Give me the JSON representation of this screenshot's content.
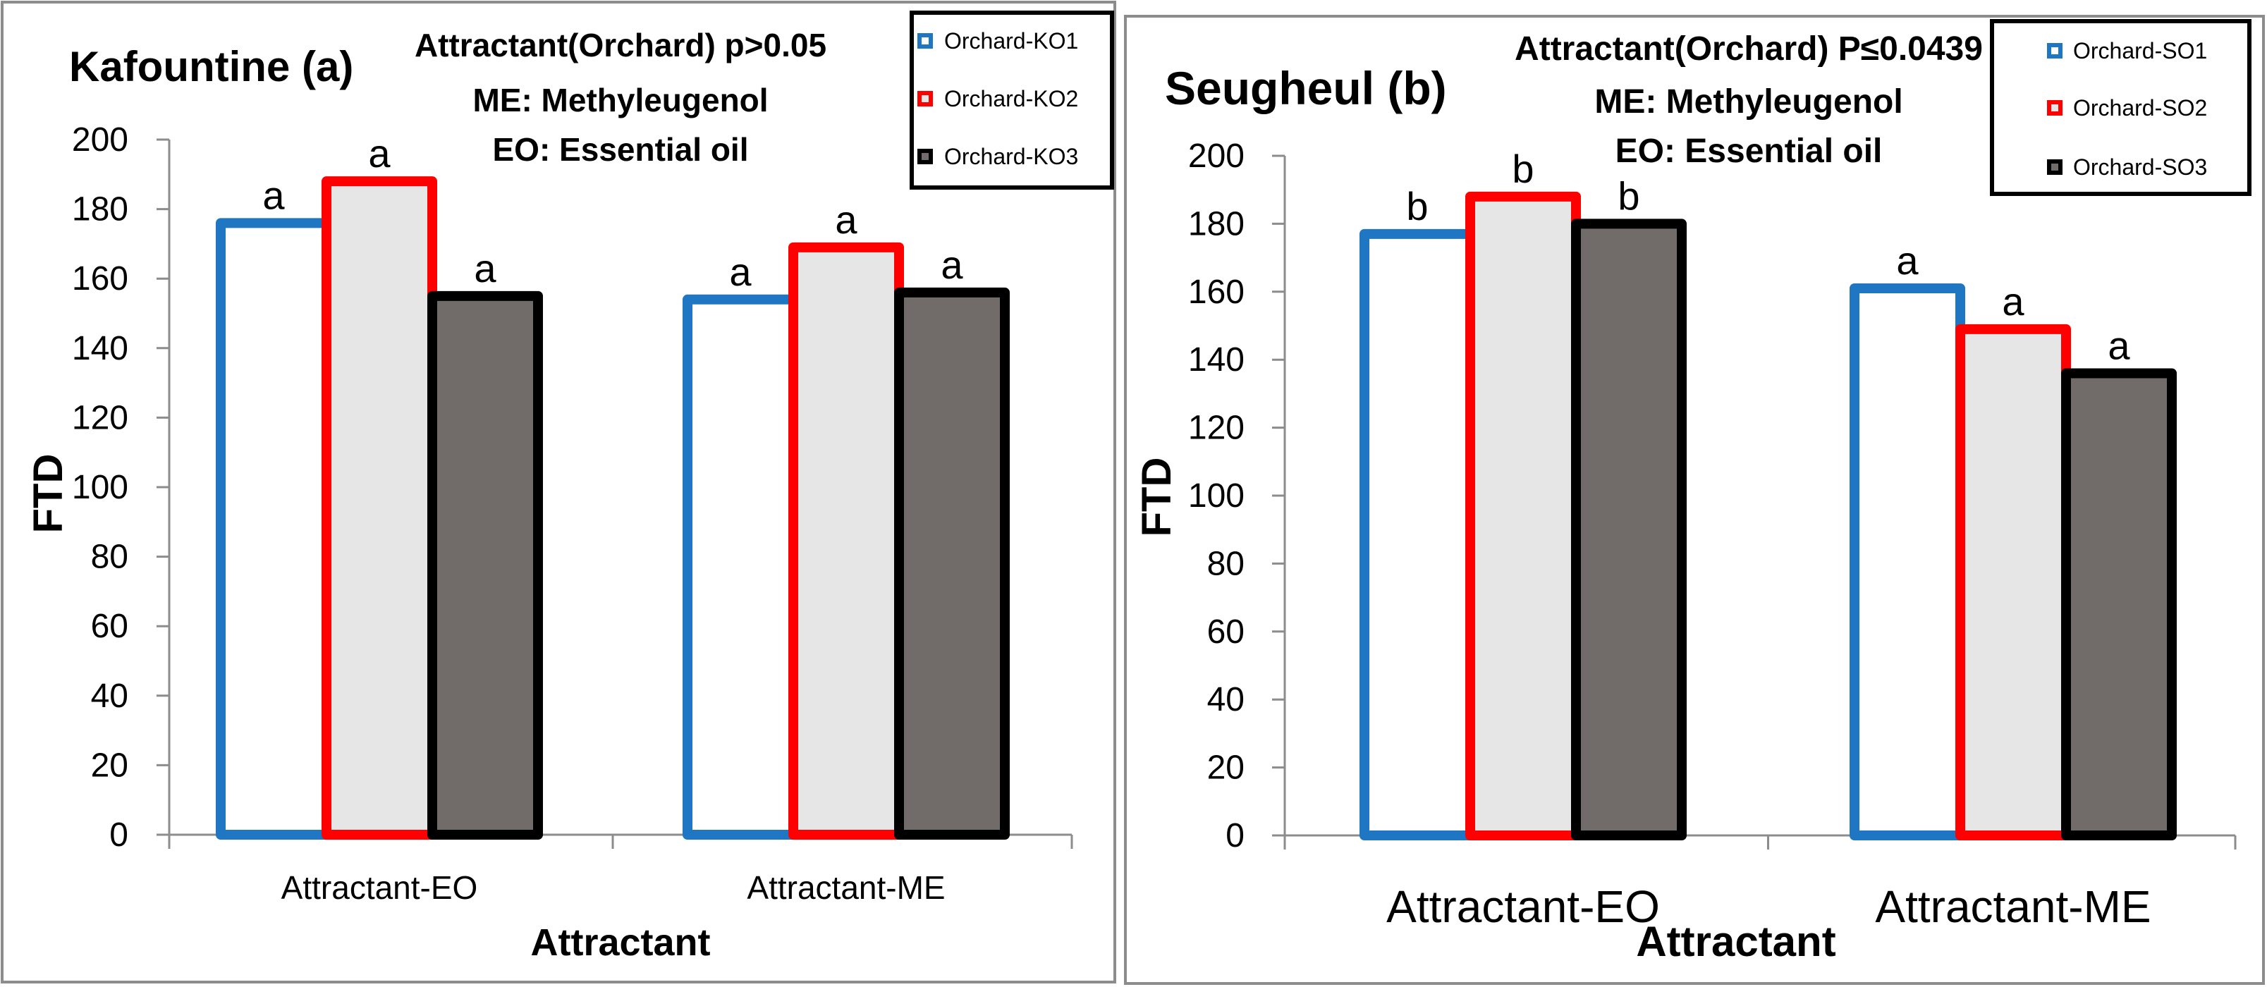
{
  "chart_data": [
    {
      "type": "bar",
      "title": "Kafountine (a)",
      "annotations": [
        "Attractant(Orchard) p>0.05",
        "ME: Methyleugenol",
        "EO: Essential oil"
      ],
      "xlabel": "Attractant",
      "ylabel": "FTD",
      "ylim": [
        0,
        200
      ],
      "yticks": [
        "0",
        "20",
        "40",
        "60",
        "80",
        "100",
        "120",
        "140",
        "160",
        "180",
        "200"
      ],
      "categories": [
        "Attractant-EO",
        "Attractant-ME"
      ],
      "series": [
        {
          "name": "Orchard-KO1",
          "values": [
            176,
            154
          ],
          "letters": [
            "a",
            "a"
          ],
          "stroke": "#1f77c4",
          "fill": "#ffffff"
        },
        {
          "name": "Orchard-KO2",
          "values": [
            188,
            169
          ],
          "letters": [
            "a",
            "a"
          ],
          "stroke": "#ff0000",
          "fill": "#e6e6e6"
        },
        {
          "name": "Orchard-KO3",
          "values": [
            155,
            156
          ],
          "letters": [
            "a",
            "a"
          ],
          "stroke": "#000000",
          "fill": "#716c69"
        }
      ],
      "legend_position": "top-right",
      "grid": false
    },
    {
      "type": "bar",
      "title": "Seugheul (b)",
      "annotations": [
        "Attractant(Orchard) P≤0.0439",
        "ME: Methyleugenol",
        "EO: Essential oil"
      ],
      "xlabel": "Attractant",
      "ylabel": "FTD",
      "ylim": [
        0,
        200
      ],
      "yticks": [
        "0",
        "20",
        "40",
        "60",
        "80",
        "100",
        "120",
        "140",
        "160",
        "180",
        "200"
      ],
      "categories": [
        "Attractant-EO",
        "Attractant-ME"
      ],
      "series": [
        {
          "name": "Orchard-SO1",
          "values": [
            177,
            161
          ],
          "letters": [
            "b",
            "a"
          ],
          "stroke": "#1f77c4",
          "fill": "#ffffff"
        },
        {
          "name": "Orchard-SO2",
          "values": [
            188,
            149
          ],
          "letters": [
            "b",
            "a"
          ],
          "stroke": "#ff0000",
          "fill": "#e6e6e6"
        },
        {
          "name": "Orchard-SO3",
          "values": [
            180,
            136
          ],
          "letters": [
            "b",
            "a"
          ],
          "stroke": "#000000",
          "fill": "#716c69"
        }
      ],
      "legend_position": "top-right",
      "grid": false
    }
  ]
}
